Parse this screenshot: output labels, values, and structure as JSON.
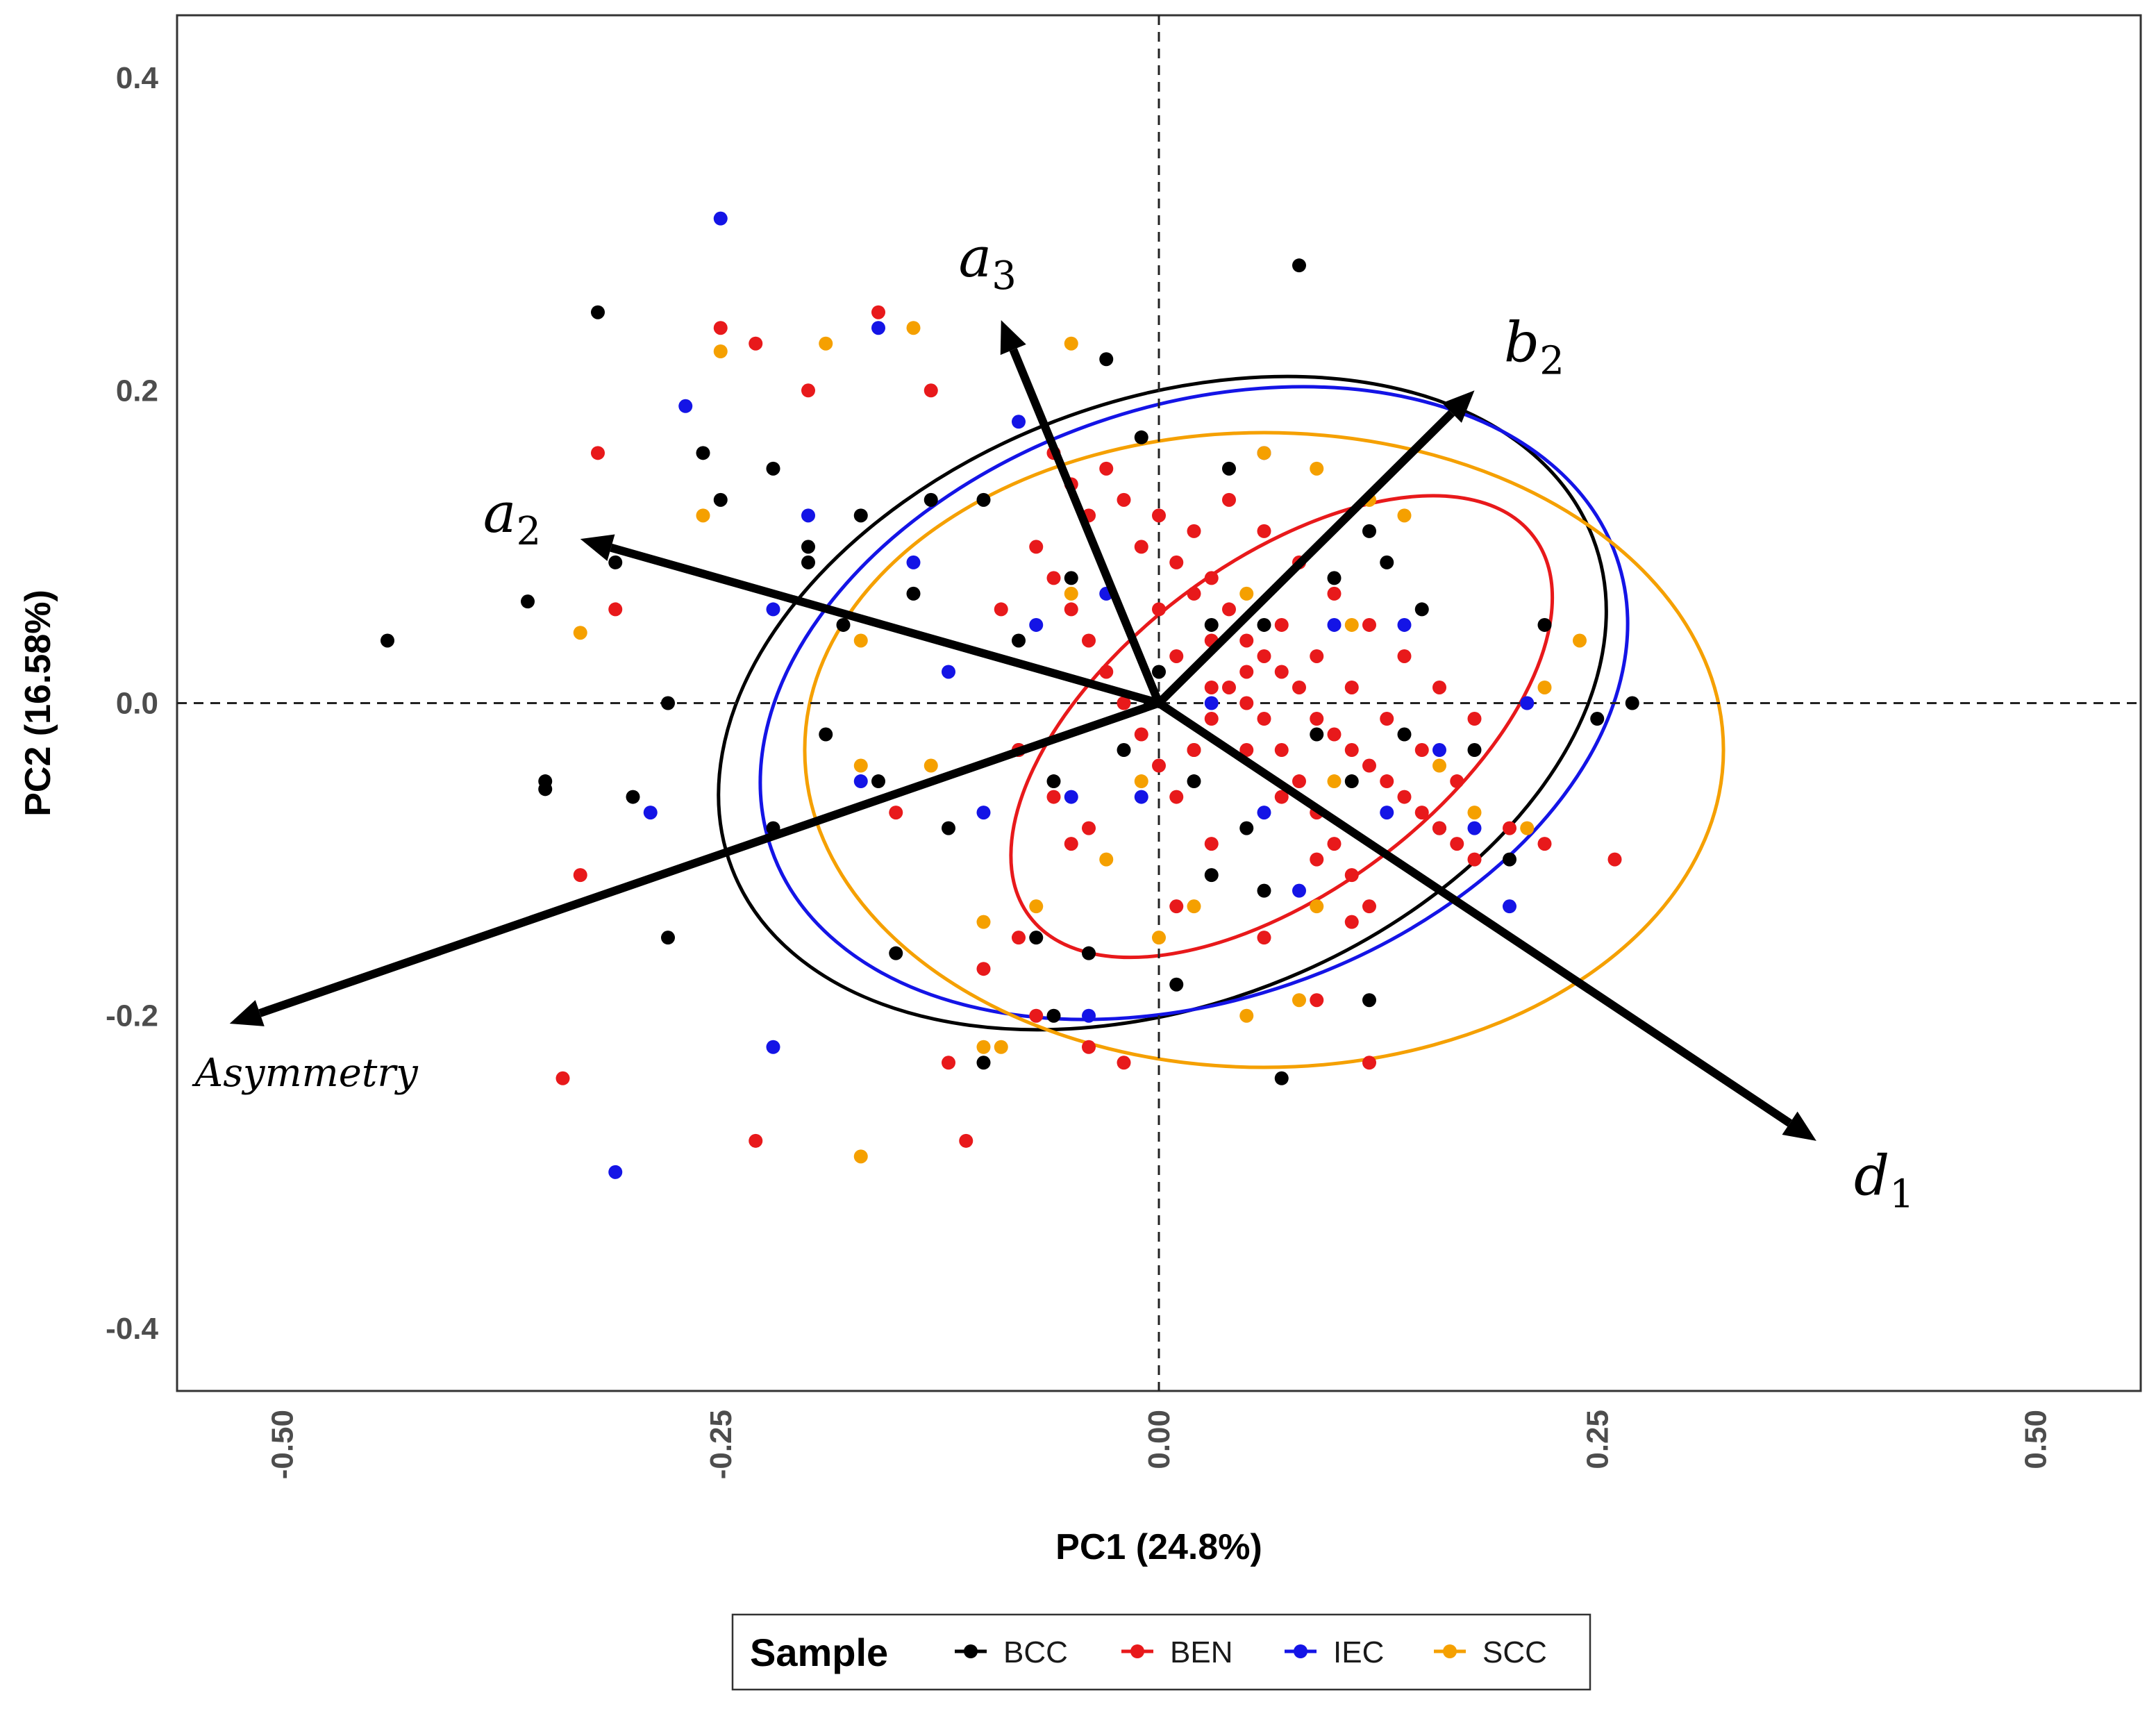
{
  "chart_data": {
    "type": "scatter",
    "xlabel": "PC1 (24.8%)",
    "ylabel": "PC2 (16.58%)",
    "xlim": [
      -0.56,
      0.56
    ],
    "ylim": [
      -0.44,
      0.44
    ],
    "x_ticks": [
      -0.5,
      -0.25,
      0.0,
      0.25,
      0.5
    ],
    "x_tick_labels": [
      "-0.50",
      "-0.25",
      "0.00",
      "0.25",
      "0.50"
    ],
    "y_ticks": [
      -0.4,
      -0.2,
      0.0,
      0.2,
      0.4
    ],
    "y_tick_labels": [
      "-0.4",
      "-0.2",
      "0.0",
      "0.2",
      "0.4"
    ],
    "grid": false,
    "reference_lines": {
      "x": 0,
      "y": 0,
      "style": "dashed"
    },
    "legend": {
      "title": "Sample",
      "position": "bottom"
    },
    "series": [
      {
        "name": "BCC",
        "color": "#000000",
        "ellipse": {
          "cx": 0.002,
          "cy": 0.0,
          "rx": 0.263,
          "ry": 0.193,
          "angle_deg": -21
        },
        "points": [
          [
            -0.44,
            0.04
          ],
          [
            -0.36,
            0.065
          ],
          [
            -0.32,
            0.25
          ],
          [
            -0.31,
            0.09
          ],
          [
            -0.35,
            -0.05
          ],
          [
            -0.35,
            -0.055
          ],
          [
            -0.3,
            -0.06
          ],
          [
            -0.28,
            -0.15
          ],
          [
            -0.28,
            0.0
          ],
          [
            -0.26,
            0.16
          ],
          [
            -0.25,
            0.13
          ],
          [
            -0.22,
            0.15
          ],
          [
            -0.2,
            0.1
          ],
          [
            -0.2,
            0.09
          ],
          [
            -0.19,
            -0.02
          ],
          [
            -0.18,
            0.05
          ],
          [
            -0.16,
            -0.05
          ],
          [
            -0.15,
            -0.16
          ],
          [
            -0.14,
            0.07
          ],
          [
            -0.13,
            0.13
          ],
          [
            -0.12,
            -0.08
          ],
          [
            -0.1,
            -0.23
          ],
          [
            -0.1,
            0.13
          ],
          [
            -0.08,
            -0.03
          ],
          [
            -0.07,
            -0.15
          ],
          [
            -0.06,
            -0.05
          ],
          [
            -0.05,
            0.08
          ],
          [
            -0.04,
            -0.16
          ],
          [
            -0.03,
            0.22
          ],
          [
            -0.02,
            -0.03
          ],
          [
            -0.01,
            0.17
          ],
          [
            0.0,
            0.02
          ],
          [
            0.01,
            -0.18
          ],
          [
            0.02,
            -0.05
          ],
          [
            0.03,
            0.05
          ],
          [
            0.04,
            0.15
          ],
          [
            0.05,
            -0.08
          ],
          [
            0.06,
            0.05
          ],
          [
            0.07,
            -0.24
          ],
          [
            0.08,
            0.28
          ],
          [
            0.09,
            -0.02
          ],
          [
            0.1,
            0.08
          ],
          [
            0.11,
            -0.05
          ],
          [
            0.12,
            -0.19
          ],
          [
            0.13,
            0.09
          ],
          [
            0.14,
            -0.02
          ],
          [
            0.15,
            0.06
          ],
          [
            0.16,
            -0.08
          ],
          [
            0.18,
            -0.03
          ],
          [
            0.2,
            -0.1
          ],
          [
            0.22,
            0.05
          ],
          [
            0.25,
            -0.01
          ],
          [
            0.27,
            0.0
          ],
          [
            0.03,
            -0.11
          ],
          [
            -0.06,
            -0.2
          ],
          [
            0.06,
            -0.12
          ],
          [
            -0.17,
            0.12
          ],
          [
            -0.08,
            0.04
          ],
          [
            0.12,
            0.11
          ],
          [
            -0.22,
            -0.08
          ]
        ]
      },
      {
        "name": "BEN",
        "color": "#e8191b",
        "ellipse": {
          "cx": 0.07,
          "cy": -0.015,
          "rx": 0.18,
          "ry": 0.105,
          "angle_deg": -37
        },
        "points": [
          [
            -0.32,
            0.16
          ],
          [
            -0.31,
            0.06
          ],
          [
            -0.34,
            -0.24
          ],
          [
            -0.33,
            -0.11
          ],
          [
            -0.25,
            0.24
          ],
          [
            -0.23,
            0.23
          ],
          [
            -0.23,
            -0.28
          ],
          [
            -0.2,
            0.2
          ],
          [
            -0.16,
            0.25
          ],
          [
            -0.15,
            -0.07
          ],
          [
            -0.13,
            0.2
          ],
          [
            -0.12,
            -0.23
          ],
          [
            -0.11,
            -0.28
          ],
          [
            -0.1,
            -0.17
          ],
          [
            -0.08,
            -0.15
          ],
          [
            -0.07,
            -0.2
          ],
          [
            -0.05,
            -0.09
          ],
          [
            -0.04,
            -0.22
          ],
          [
            -0.02,
            -0.23
          ],
          [
            0.01,
            -0.13
          ],
          [
            0.03,
            -0.09
          ],
          [
            0.06,
            -0.15
          ],
          [
            0.09,
            -0.19
          ],
          [
            0.12,
            -0.23
          ],
          [
            0.2,
            -0.08
          ],
          [
            0.22,
            -0.09
          ],
          [
            0.26,
            -0.1
          ],
          [
            -0.06,
            0.16
          ],
          [
            -0.05,
            0.14
          ],
          [
            -0.04,
            0.12
          ],
          [
            -0.03,
            0.15
          ],
          [
            -0.02,
            0.13
          ],
          [
            -0.01,
            0.1
          ],
          [
            0.0,
            0.12
          ],
          [
            0.01,
            0.09
          ],
          [
            0.02,
            0.11
          ],
          [
            0.03,
            0.08
          ],
          [
            0.04,
            0.06
          ],
          [
            0.05,
            0.04
          ],
          [
            0.06,
            0.03
          ],
          [
            0.07,
            0.02
          ],
          [
            0.08,
            0.01
          ],
          [
            0.09,
            -0.01
          ],
          [
            0.1,
            -0.02
          ],
          [
            0.11,
            -0.03
          ],
          [
            0.12,
            -0.04
          ],
          [
            0.13,
            -0.05
          ],
          [
            0.14,
            -0.06
          ],
          [
            0.15,
            -0.07
          ],
          [
            0.16,
            -0.08
          ],
          [
            0.17,
            -0.09
          ],
          [
            0.18,
            -0.1
          ],
          [
            -0.07,
            0.1
          ],
          [
            -0.06,
            0.08
          ],
          [
            -0.05,
            0.06
          ],
          [
            -0.04,
            0.04
          ],
          [
            -0.03,
            0.02
          ],
          [
            -0.02,
            0.0
          ],
          [
            -0.01,
            -0.02
          ],
          [
            0.0,
            -0.04
          ],
          [
            0.01,
            -0.06
          ],
          [
            0.02,
            -0.03
          ],
          [
            0.03,
            -0.01
          ],
          [
            0.04,
            0.01
          ],
          [
            0.05,
            0.02
          ],
          [
            0.06,
            -0.01
          ],
          [
            0.07,
            -0.03
          ],
          [
            0.08,
            -0.05
          ],
          [
            0.09,
            -0.07
          ],
          [
            0.1,
            -0.09
          ],
          [
            0.11,
            -0.11
          ],
          [
            0.12,
            -0.13
          ],
          [
            0.04,
            0.13
          ],
          [
            0.06,
            0.11
          ],
          [
            0.08,
            0.09
          ],
          [
            0.1,
            0.07
          ],
          [
            0.12,
            0.05
          ],
          [
            0.14,
            0.03
          ],
          [
            0.16,
            0.01
          ],
          [
            0.18,
            -0.01
          ],
          [
            0.02,
            0.07
          ],
          [
            0.03,
            0.04
          ],
          [
            0.05,
            0.0
          ],
          [
            0.07,
            -0.06
          ],
          [
            0.09,
            -0.1
          ],
          [
            0.11,
            -0.14
          ],
          [
            -0.08,
            -0.03
          ],
          [
            -0.06,
            -0.06
          ],
          [
            -0.04,
            -0.08
          ],
          [
            -0.09,
            0.06
          ],
          [
            0.0,
            0.06
          ],
          [
            0.01,
            0.03
          ],
          [
            0.03,
            0.01
          ],
          [
            0.05,
            -0.03
          ],
          [
            0.07,
            0.05
          ],
          [
            0.09,
            0.03
          ],
          [
            0.11,
            0.01
          ],
          [
            0.13,
            -0.01
          ],
          [
            0.15,
            -0.03
          ],
          [
            0.17,
            -0.05
          ]
        ]
      },
      {
        "name": "IEC",
        "color": "#1414e6",
        "ellipse": {
          "cx": 0.02,
          "cy": 0.0,
          "rx": 0.255,
          "ry": 0.19,
          "angle_deg": -19
        },
        "points": [
          [
            -0.25,
            0.31
          ],
          [
            -0.27,
            0.19
          ],
          [
            -0.31,
            -0.3
          ],
          [
            -0.29,
            -0.07
          ],
          [
            -0.22,
            -0.22
          ],
          [
            -0.2,
            0.12
          ],
          [
            -0.16,
            0.24
          ],
          [
            -0.14,
            0.09
          ],
          [
            -0.12,
            0.02
          ],
          [
            -0.1,
            -0.07
          ],
          [
            -0.08,
            0.18
          ],
          [
            -0.07,
            0.05
          ],
          [
            -0.05,
            -0.06
          ],
          [
            -0.04,
            -0.2
          ],
          [
            -0.03,
            0.07
          ],
          [
            0.02,
            -0.03
          ],
          [
            0.03,
            0.0
          ],
          [
            0.06,
            -0.07
          ],
          [
            0.08,
            -0.12
          ],
          [
            0.1,
            0.05
          ],
          [
            0.13,
            -0.07
          ],
          [
            0.16,
            -0.03
          ],
          [
            0.18,
            -0.08
          ],
          [
            0.2,
            -0.13
          ],
          [
            0.21,
            0.0
          ],
          [
            0.06,
            0.16
          ],
          [
            -0.01,
            -0.06
          ],
          [
            -0.22,
            0.06
          ],
          [
            0.14,
            0.05
          ],
          [
            -0.17,
            -0.05
          ]
        ]
      },
      {
        "name": "SCC",
        "color": "#f5a000",
        "ellipse": {
          "cx": 0.06,
          "cy": -0.03,
          "rx": 0.262,
          "ry": 0.203,
          "angle_deg": 0
        },
        "points": [
          [
            -0.33,
            0.045
          ],
          [
            -0.26,
            0.12
          ],
          [
            -0.25,
            0.225
          ],
          [
            -0.19,
            0.23
          ],
          [
            -0.17,
            0.04
          ],
          [
            -0.17,
            -0.04
          ],
          [
            -0.17,
            -0.29
          ],
          [
            -0.14,
            0.24
          ],
          [
            -0.13,
            -0.04
          ],
          [
            -0.1,
            -0.22
          ],
          [
            -0.09,
            -0.22
          ],
          [
            -0.1,
            -0.14
          ],
          [
            -0.07,
            -0.13
          ],
          [
            -0.05,
            0.23
          ],
          [
            -0.03,
            -0.1
          ],
          [
            -0.01,
            -0.05
          ],
          [
            0.0,
            -0.15
          ],
          [
            0.02,
            -0.13
          ],
          [
            0.05,
            0.07
          ],
          [
            0.06,
            0.16
          ],
          [
            0.08,
            -0.19
          ],
          [
            0.1,
            -0.05
          ],
          [
            0.12,
            0.13
          ],
          [
            0.14,
            0.12
          ],
          [
            0.16,
            -0.04
          ],
          [
            0.18,
            -0.07
          ],
          [
            0.21,
            -0.08
          ],
          [
            0.24,
            0.04
          ],
          [
            0.09,
            0.15
          ],
          [
            0.11,
            0.05
          ],
          [
            0.02,
            -0.03
          ],
          [
            -0.05,
            0.07
          ],
          [
            0.05,
            -0.2
          ],
          [
            0.09,
            -0.13
          ],
          [
            0.22,
            0.01
          ]
        ]
      }
    ],
    "loading_vectors": [
      {
        "label": "a",
        "subscript": "3",
        "x": -0.09,
        "y": 0.245
      },
      {
        "label": "b",
        "subscript": "2",
        "x": 0.18,
        "y": 0.2
      },
      {
        "label": "a",
        "subscript": "2",
        "x": -0.33,
        "y": 0.105
      },
      {
        "label": "Asymmetry",
        "subscript": "",
        "x": -0.53,
        "y": -0.205
      },
      {
        "label": "d",
        "subscript": "1",
        "x": 0.375,
        "y": -0.28
      }
    ]
  }
}
